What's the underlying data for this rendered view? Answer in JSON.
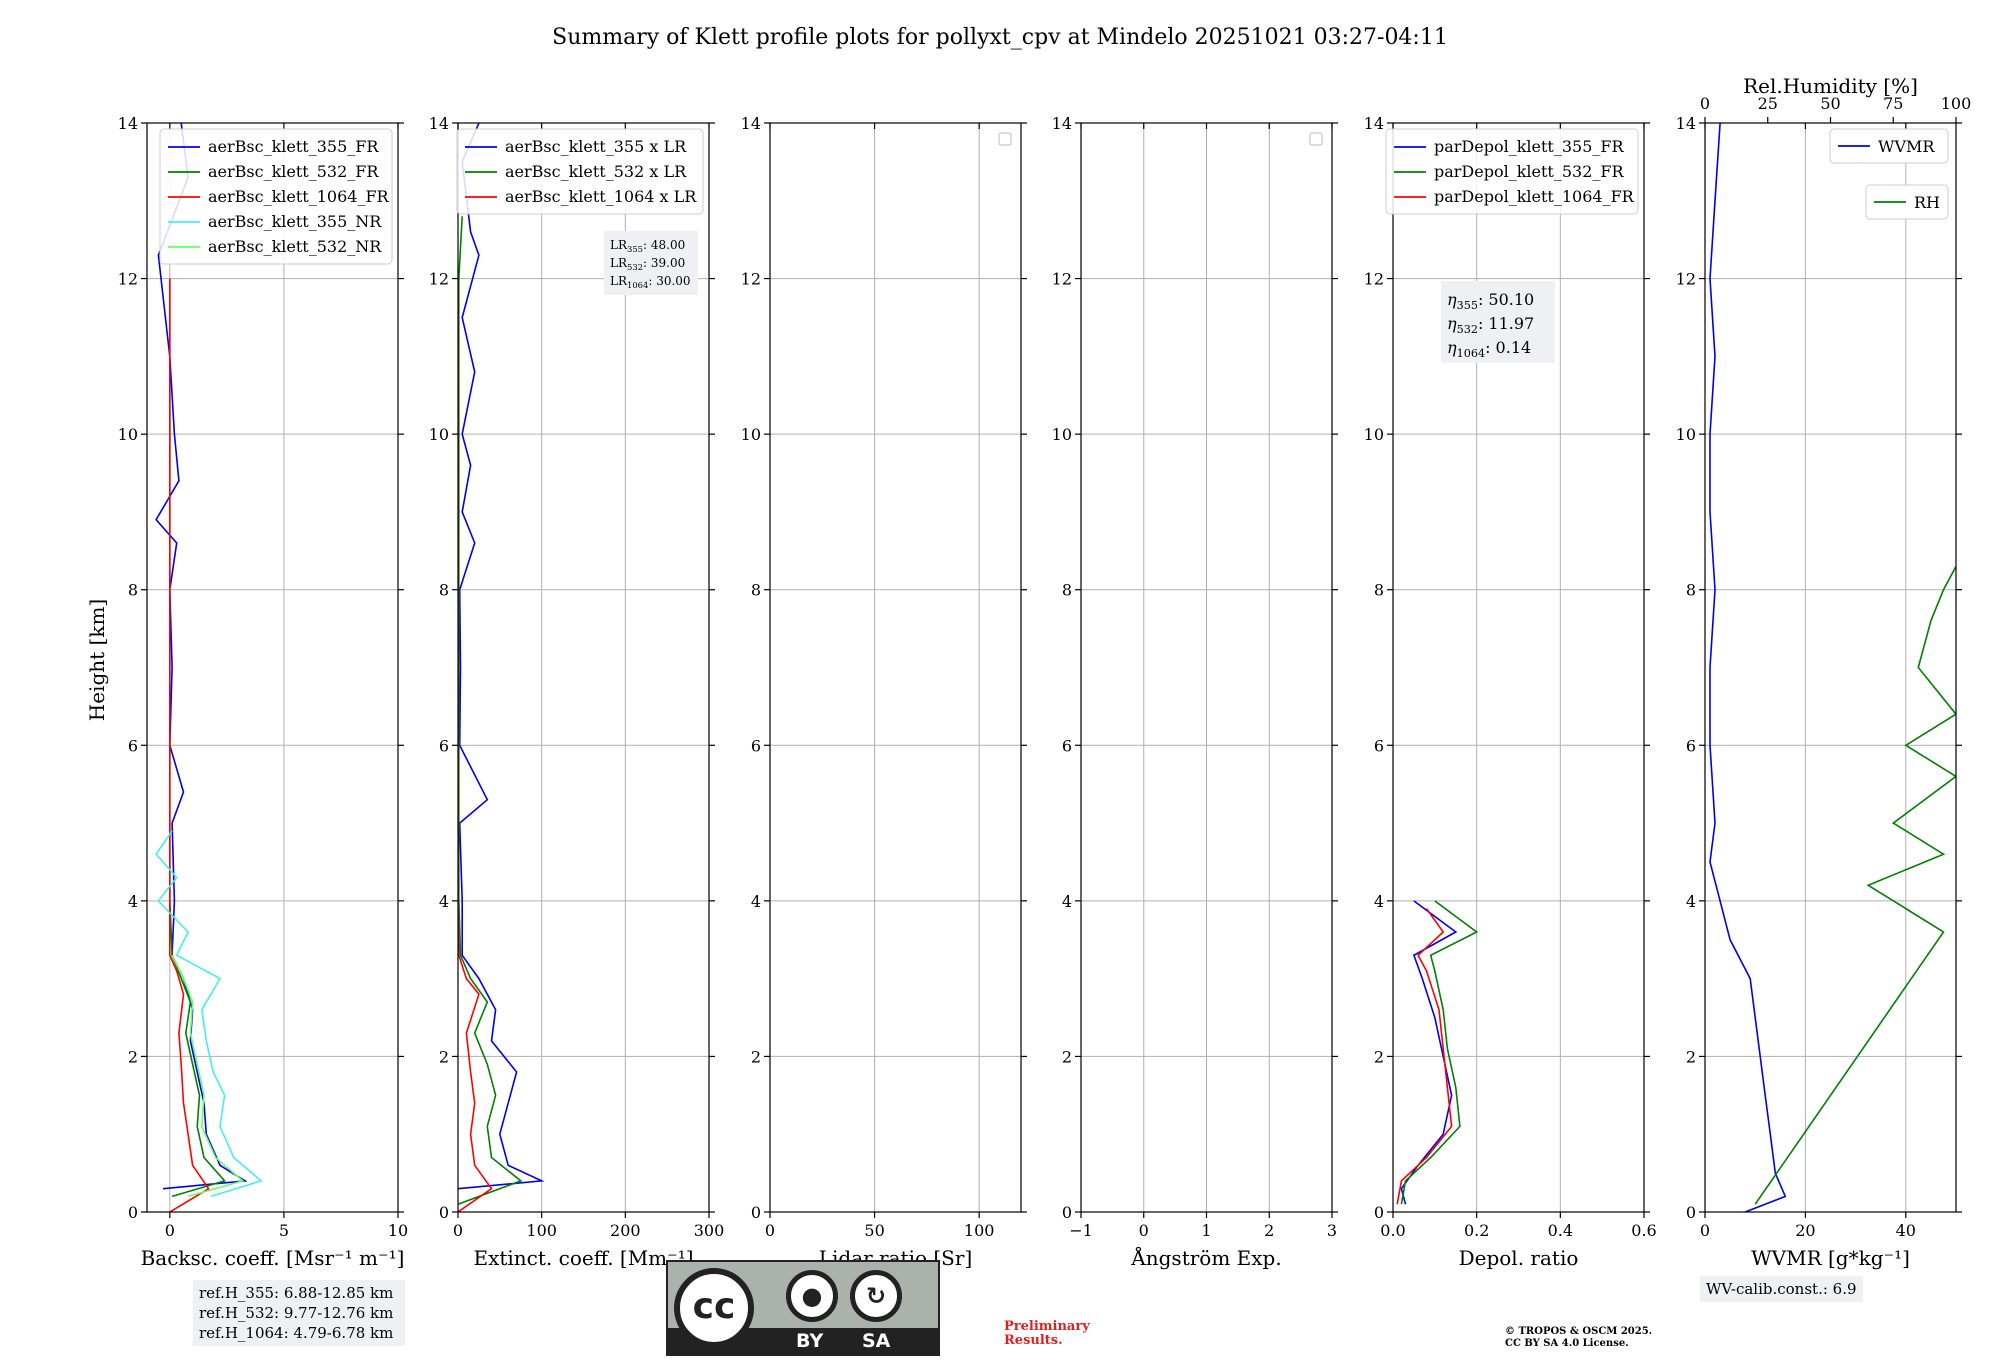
{
  "title": "Summary of Klett profile plots for pollyxt_cpv at Mindelo 20251021 03:27-04:11",
  "ylabel": "Height [km]",
  "colors": {
    "c355": "#0000ee",
    "c532": "#008000",
    "c1064": "#ff0000",
    "c355nr": "#44eeee",
    "c532nr": "#66ff66"
  },
  "chart_data": [
    {
      "type": "line",
      "xlabel": "Backsc. coeff. [Msr⁻¹ m⁻¹]",
      "xlim": [
        -1,
        10
      ],
      "xticks": [
        0,
        5,
        10
      ],
      "ylim": [
        0,
        14
      ],
      "yticks": [
        0,
        2,
        4,
        6,
        8,
        10,
        12,
        14
      ],
      "legend": "top-right",
      "series": [
        {
          "name": "aerBsc_klett_355_FR",
          "color": "#0000ee",
          "points": [
            [
              -0.3,
              0.3
            ],
            [
              3.3,
              0.4
            ],
            [
              2.2,
              0.6
            ],
            [
              1.6,
              1.0
            ],
            [
              1.5,
              1.4
            ],
            [
              1.2,
              1.8
            ],
            [
              0.9,
              2.2
            ],
            [
              1.0,
              2.6
            ],
            [
              0.6,
              3.0
            ],
            [
              0.1,
              3.3
            ],
            [
              0.2,
              4.0
            ],
            [
              0.1,
              5.0
            ],
            [
              0.6,
              5.4
            ],
            [
              0.0,
              6.0
            ],
            [
              0.1,
              7.0
            ],
            [
              0.0,
              8.0
            ],
            [
              0.3,
              8.6
            ],
            [
              -0.6,
              8.9
            ],
            [
              0.4,
              9.4
            ],
            [
              0.2,
              10.0
            ],
            [
              0.0,
              11.0
            ],
            [
              -0.5,
              12.3
            ],
            [
              0.8,
              13.3
            ],
            [
              0.5,
              14.0
            ]
          ]
        },
        {
          "name": "aerBsc_klett_532_FR",
          "color": "#008000",
          "points": [
            [
              0.1,
              0.2
            ],
            [
              2.4,
              0.4
            ],
            [
              1.5,
              0.7
            ],
            [
              1.2,
              1.1
            ],
            [
              1.3,
              1.5
            ],
            [
              1.0,
              1.9
            ],
            [
              0.7,
              2.3
            ],
            [
              0.9,
              2.7
            ],
            [
              0.5,
              3.0
            ],
            [
              0.1,
              3.3
            ],
            [
              0.0,
              4.0
            ],
            [
              0.0,
              6.0
            ],
            [
              0.0,
              8.0
            ],
            [
              0.0,
              10.0
            ],
            [
              0.0,
              12.0
            ]
          ]
        },
        {
          "name": "aerBsc_klett_1064_FR",
          "color": "#ff0000",
          "points": [
            [
              0.0,
              0.0
            ],
            [
              1.7,
              0.3
            ],
            [
              1.0,
              0.6
            ],
            [
              0.8,
              1.0
            ],
            [
              0.6,
              1.4
            ],
            [
              0.5,
              1.9
            ],
            [
              0.4,
              2.3
            ],
            [
              0.6,
              2.8
            ],
            [
              0.3,
              3.1
            ],
            [
              0.0,
              3.3
            ],
            [
              0.0,
              4.0
            ],
            [
              0.0,
              6.0
            ],
            [
              0.0,
              8.0
            ],
            [
              0.0,
              10.0
            ],
            [
              0.0,
              12.0
            ]
          ]
        },
        {
          "name": "aerBsc_klett_355_NR",
          "color": "#44eeee",
          "points": [
            [
              1.8,
              0.2
            ],
            [
              4.0,
              0.4
            ],
            [
              2.8,
              0.7
            ],
            [
              2.2,
              1.1
            ],
            [
              2.4,
              1.5
            ],
            [
              1.9,
              1.8
            ],
            [
              1.6,
              2.2
            ],
            [
              1.4,
              2.6
            ],
            [
              2.2,
              3.0
            ],
            [
              0.3,
              3.3
            ],
            [
              0.8,
              3.6
            ],
            [
              -0.5,
              4.0
            ],
            [
              0.3,
              4.3
            ],
            [
              -0.6,
              4.6
            ],
            [
              0.1,
              4.9
            ]
          ]
        },
        {
          "name": "aerBsc_klett_532_NR",
          "color": "#66ff66",
          "points": [
            [
              0.8,
              0.2
            ],
            [
              3.2,
              0.4
            ],
            [
              2.0,
              0.7
            ],
            [
              1.4,
              1.1
            ],
            [
              1.5,
              1.5
            ],
            [
              1.2,
              1.9
            ],
            [
              0.9,
              2.3
            ],
            [
              1.0,
              2.7
            ],
            [
              0.6,
              3.0
            ],
            [
              0.1,
              3.3
            ]
          ]
        }
      ]
    },
    {
      "type": "line",
      "xlabel": "Extinct. coeff. [Mm⁻¹]",
      "xlim": [
        0,
        300
      ],
      "xticks": [
        0,
        100,
        200,
        300
      ],
      "ylim": [
        0,
        14
      ],
      "yticks": [
        0,
        2,
        4,
        6,
        8,
        10,
        12,
        14
      ],
      "legend": "top-right",
      "annotation": [
        {
          "sym": "LR",
          "sub": "355",
          "val": ": 48.00"
        },
        {
          "sym": "LR",
          "sub": "532",
          "val": ": 39.00"
        },
        {
          "sym": "LR",
          "sub": "1064",
          "val": ": 30.00"
        }
      ],
      "series": [
        {
          "name": "aerBsc_klett_355 x LR",
          "color": "#0000ee",
          "points": [
            [
              0,
              0.3
            ],
            [
              100,
              0.4
            ],
            [
              60,
              0.6
            ],
            [
              50,
              1.0
            ],
            [
              60,
              1.4
            ],
            [
              70,
              1.8
            ],
            [
              40,
              2.2
            ],
            [
              45,
              2.6
            ],
            [
              25,
              3.0
            ],
            [
              5,
              3.3
            ],
            [
              5,
              4.0
            ],
            [
              2,
              5.0
            ],
            [
              35,
              5.3
            ],
            [
              2,
              6.0
            ],
            [
              3,
              7.0
            ],
            [
              2,
              8.0
            ],
            [
              20,
              8.6
            ],
            [
              5,
              9.0
            ],
            [
              15,
              9.6
            ],
            [
              5,
              10.0
            ],
            [
              20,
              10.8
            ],
            [
              5,
              11.5
            ],
            [
              25,
              12.3
            ],
            [
              15,
              12.6
            ],
            [
              5,
              13.5
            ],
            [
              25,
              14.0
            ]
          ]
        },
        {
          "name": "aerBsc_klett_532 x LR",
          "color": "#008000",
          "points": [
            [
              0,
              0.1
            ],
            [
              75,
              0.4
            ],
            [
              40,
              0.7
            ],
            [
              35,
              1.1
            ],
            [
              45,
              1.5
            ],
            [
              35,
              1.9
            ],
            [
              20,
              2.3
            ],
            [
              35,
              2.7
            ],
            [
              15,
              3.0
            ],
            [
              3,
              3.3
            ],
            [
              1,
              4.0
            ],
            [
              1,
              6.0
            ],
            [
              1,
              8.0
            ],
            [
              1,
              10.0
            ],
            [
              1,
              12.0
            ],
            [
              5,
              12.8
            ]
          ]
        },
        {
          "name": "aerBsc_klett_1064 x LR",
          "color": "#ff0000",
          "points": [
            [
              0,
              0.0
            ],
            [
              40,
              0.3
            ],
            [
              20,
              0.6
            ],
            [
              15,
              1.0
            ],
            [
              20,
              1.4
            ],
            [
              15,
              1.8
            ],
            [
              10,
              2.3
            ],
            [
              25,
              2.8
            ],
            [
              10,
              3.0
            ],
            [
              1,
              3.3
            ],
            [
              0,
              4.0
            ],
            [
              0,
              6.0
            ],
            [
              0,
              8.0
            ],
            [
              0,
              10.0
            ],
            [
              0,
              12.0
            ]
          ]
        }
      ]
    },
    {
      "type": "line",
      "xlabel": "Lidar ratio [Sr]",
      "xlim": [
        0,
        120
      ],
      "xticks": [
        0,
        50,
        100
      ],
      "ylim": [
        0,
        14
      ],
      "yticks": [
        0,
        2,
        4,
        6,
        8,
        10,
        12,
        14
      ],
      "legend": "top-right",
      "series": []
    },
    {
      "type": "line",
      "xlabel": "Ångström Exp.",
      "xlim": [
        -1,
        3
      ],
      "xticks": [
        -1,
        0,
        1,
        2,
        3
      ],
      "ylim": [
        0,
        14
      ],
      "yticks": [
        0,
        2,
        4,
        6,
        8,
        10,
        12,
        14
      ],
      "legend": "top-right",
      "series": []
    },
    {
      "type": "line",
      "xlabel": "Depol. ratio",
      "xlim": [
        0,
        0.6
      ],
      "xticks": [
        0.0,
        0.2,
        0.4,
        0.6
      ],
      "ylim": [
        0,
        14
      ],
      "yticks": [
        0,
        2,
        4,
        6,
        8,
        10,
        12,
        14
      ],
      "legend": "top-right",
      "annotation": [
        {
          "sym": "η",
          "sub": "355",
          "val": ": 50.10"
        },
        {
          "sym": "η",
          "sub": "532",
          "val": ": 11.97"
        },
        {
          "sym": "η",
          "sub": "1064",
          "val": ": 0.14"
        }
      ],
      "series": [
        {
          "name": "parDepol_klett_355_FR",
          "color": "#0000ee",
          "points": [
            [
              0.03,
              0.1
            ],
            [
              0.02,
              0.3
            ],
            [
              0.06,
              0.6
            ],
            [
              0.12,
              1.0
            ],
            [
              0.14,
              1.5
            ],
            [
              0.12,
              2.0
            ],
            [
              0.1,
              2.5
            ],
            [
              0.07,
              3.0
            ],
            [
              0.05,
              3.3
            ],
            [
              0.15,
              3.6
            ],
            [
              0.05,
              4.0
            ]
          ]
        },
        {
          "name": "parDepol_klett_532_FR",
          "color": "#008000",
          "points": [
            [
              0.02,
              0.1
            ],
            [
              0.03,
              0.4
            ],
            [
              0.09,
              0.7
            ],
            [
              0.16,
              1.1
            ],
            [
              0.15,
              1.6
            ],
            [
              0.13,
              2.1
            ],
            [
              0.12,
              2.6
            ],
            [
              0.1,
              3.1
            ],
            [
              0.09,
              3.3
            ],
            [
              0.2,
              3.6
            ],
            [
              0.1,
              4.0
            ]
          ]
        },
        {
          "name": "parDepol_klett_1064_FR",
          "color": "#ff0000",
          "points": [
            [
              0.01,
              0.1
            ],
            [
              0.02,
              0.4
            ],
            [
              0.08,
              0.7
            ],
            [
              0.14,
              1.1
            ],
            [
              0.13,
              1.6
            ],
            [
              0.12,
              2.1
            ],
            [
              0.11,
              2.6
            ],
            [
              0.08,
              3.1
            ],
            [
              0.06,
              3.3
            ],
            [
              0.12,
              3.6
            ],
            [
              0.08,
              3.9
            ]
          ]
        }
      ]
    },
    {
      "type": "line",
      "xlabel": "WVMR [g*kg⁻¹]",
      "xlim": [
        0,
        50
      ],
      "xticks": [
        0,
        20,
        40
      ],
      "ylim": [
        0,
        14
      ],
      "yticks": [
        0,
        2,
        4,
        6,
        8,
        10,
        12,
        14
      ],
      "x2label": "Rel.Humidity [%]",
      "x2lim": [
        0,
        100
      ],
      "x2ticks": [
        0,
        25,
        50,
        75,
        100
      ],
      "series": [
        {
          "name": "WVMR",
          "color": "#0000ee",
          "points": [
            [
              8,
              0.0
            ],
            [
              16,
              0.2
            ],
            [
              14,
              0.5
            ],
            [
              13,
              1.0
            ],
            [
              12,
              1.5
            ],
            [
              11,
              2.0
            ],
            [
              9,
              3.0
            ],
            [
              5,
              3.5
            ],
            [
              3,
              4.0
            ],
            [
              1,
              4.5
            ],
            [
              2,
              5.0
            ],
            [
              1,
              6.0
            ],
            [
              1,
              7.0
            ],
            [
              2,
              8.0
            ],
            [
              1,
              9.0
            ],
            [
              1,
              10.0
            ],
            [
              2,
              11.0
            ],
            [
              1,
              12.0
            ],
            [
              2,
              13.0
            ],
            [
              3,
              14.0
            ]
          ]
        },
        {
          "name": "RH",
          "color": "#008000",
          "points": [
            [
              20,
              0.1
            ],
            [
              95,
              3.6
            ],
            [
              65,
              4.2
            ],
            [
              95,
              4.6
            ],
            [
              75,
              5.0
            ],
            [
              100,
              5.6
            ],
            [
              80,
              6.0
            ],
            [
              100,
              6.4
            ],
            [
              85,
              7.0
            ],
            [
              90,
              7.6
            ],
            [
              95,
              8.0
            ],
            [
              100,
              8.3
            ]
          ]
        }
      ]
    }
  ],
  "refbox": [
    "ref.H_355: 6.88-12.85 km",
    "ref.H_532: 9.77-12.76 km",
    "ref.H_1064: 4.79-6.78 km"
  ],
  "wvcalib": "WV-calib.const.: 6.9",
  "cc": {
    "cc": "cc",
    "by": "BY",
    "sa": "SA"
  },
  "prelim": "Preliminary\nResults.",
  "copyright": [
    "© TROPOS & OSCM 2025.",
    "CC BY SA 4.0 License."
  ]
}
